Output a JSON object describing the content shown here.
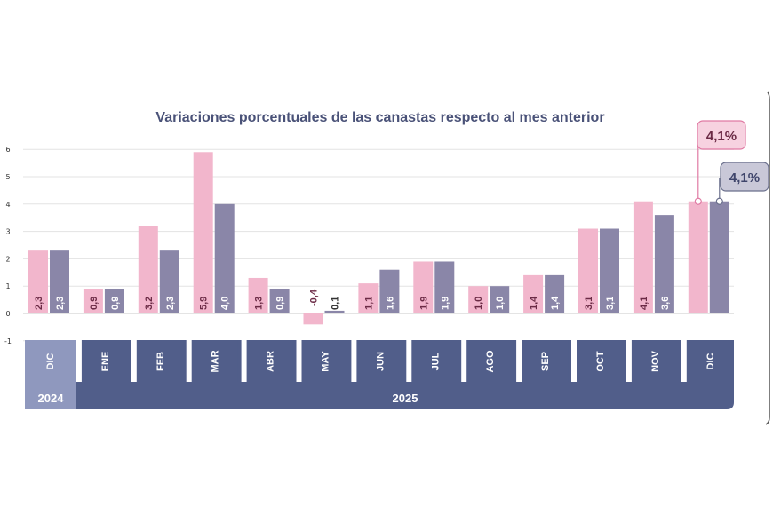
{
  "chart_data": {
    "type": "bar",
    "title": "Variaciones porcentuales de las canastas respecto al mes anterior",
    "categories": [
      "DIC",
      "ENE",
      "FEB",
      "MAR",
      "ABR",
      "MAY",
      "JUN",
      "JUL",
      "AGO",
      "SEP",
      "OCT",
      "NOV",
      "DIC"
    ],
    "value_labels": {
      "pink": [
        "2,3",
        "0,9",
        "3,2",
        "5,9",
        "1,3",
        "-0,4",
        "1,1",
        "1,9",
        "1,0",
        "1,4",
        "3,1",
        "4,1",
        ""
      ],
      "purple": [
        "2,3",
        "0,9",
        "2,3",
        "4,0",
        "0,9",
        "0,1",
        "1,6",
        "1,9",
        "1,0",
        "1,4",
        "3,1",
        "3,6",
        ""
      ]
    },
    "series": [
      {
        "name": "pink",
        "color": "#f2b6cc",
        "label_color": "#6b2a45",
        "values": [
          2.3,
          0.9,
          3.2,
          5.9,
          1.3,
          -0.4,
          1.1,
          1.9,
          1.0,
          1.4,
          3.1,
          4.1,
          4.1
        ]
      },
      {
        "name": "purple",
        "color": "#8a86a8",
        "label_color": "#ffffff",
        "values": [
          2.3,
          0.9,
          2.3,
          4.0,
          0.9,
          0.1,
          1.6,
          1.9,
          1.0,
          1.4,
          3.1,
          3.6,
          4.1
        ]
      }
    ],
    "yticks": [
      "-1",
      "0",
      "1",
      "2",
      "3",
      "4",
      "5",
      "6"
    ],
    "ylim": [
      -1,
      6
    ],
    "years": [
      {
        "label": "2024",
        "from": 0,
        "to": 0
      },
      {
        "label": "2025",
        "from": 1,
        "to": 12
      }
    ],
    "callouts": {
      "pink": "4,1%",
      "purple": "4,1%"
    },
    "colors": {
      "axis_band": "#515e8a",
      "axis_band_first": "#8f98be",
      "month_box": "#ffffff",
      "grid": "#e3e3e3",
      "title": "#4a5278"
    }
  }
}
